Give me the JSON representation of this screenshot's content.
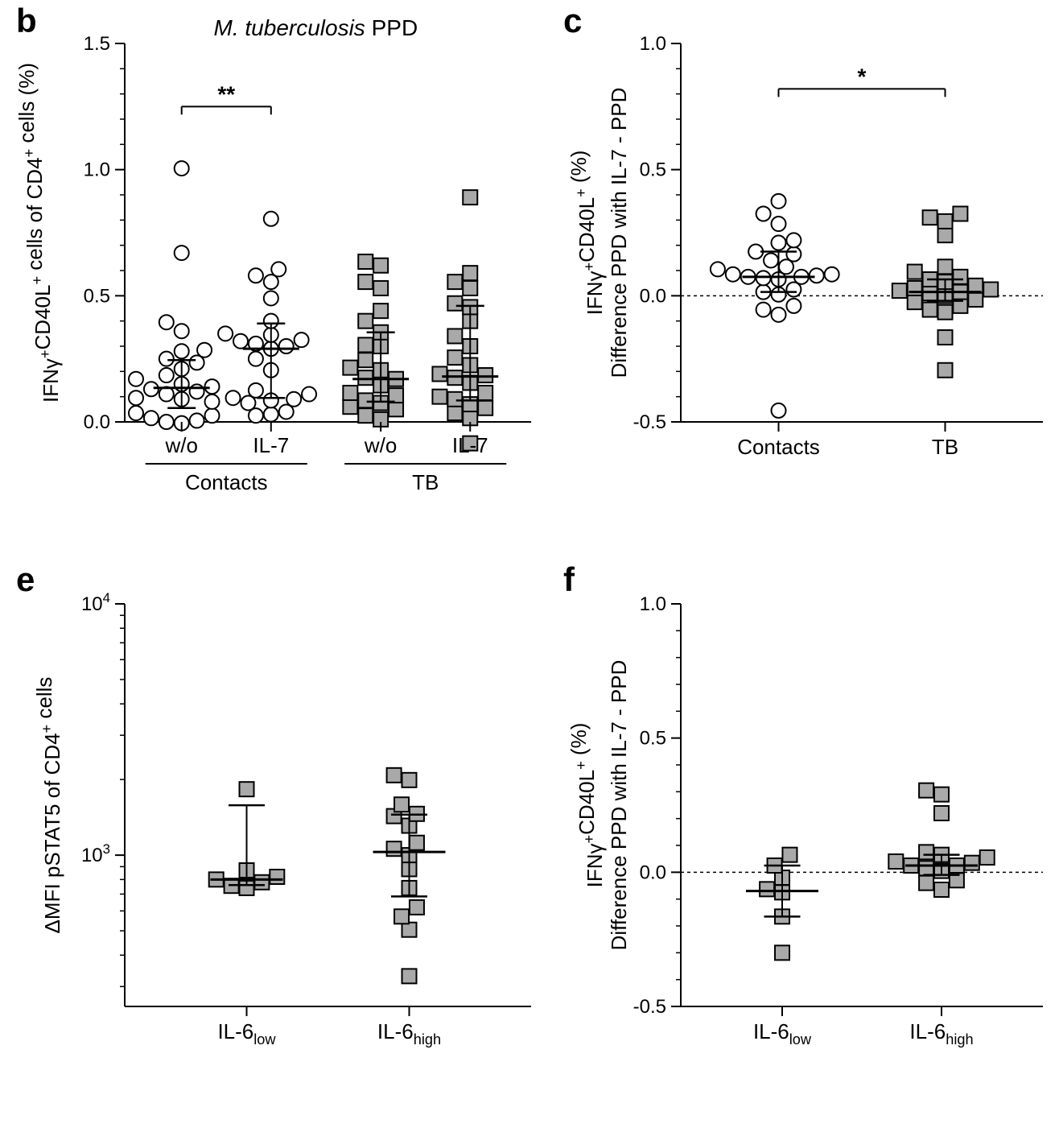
{
  "layout": {
    "figure_w": 1316,
    "figure_h": 1396,
    "font_family": "Arial",
    "panel_label_fontsize": 42,
    "axis_label_fontsize": 26,
    "tick_fontsize": 24,
    "stroke_color": "#000000",
    "marker_stroke": "#000000",
    "circle_fill": "#ffffff",
    "square_fill": "#a9a9a9",
    "marker_stroke_width": 2,
    "marker_size": 18,
    "dash_pattern": "4 4"
  },
  "panels": {
    "b": {
      "label": "b",
      "title": "M. tuberculosis PPD",
      "title_fontsize": 28,
      "title_style": "italic_first_word",
      "ylabel_lines": [
        "IFNγ+CD40L+ cells of CD4+ cells (%)"
      ],
      "ylim": [
        0,
        1.5
      ],
      "ytick_step": 0.5,
      "yminor_step": 0.1,
      "zero_dashed": true,
      "groups": [
        "Contacts",
        "TB"
      ],
      "subgroups": [
        "w/o",
        "IL-7"
      ],
      "sig": {
        "pair": [
          0,
          1
        ],
        "text": "**",
        "y": 1.25
      },
      "medians": [
        0.135,
        0.29,
        0.17,
        0.18
      ],
      "whiskers": [
        [
          0.055,
          0.245
        ],
        [
          0.095,
          0.39
        ],
        [
          0.08,
          0.355
        ],
        [
          0.085,
          0.46
        ]
      ],
      "series_marker": [
        "circle",
        "circle",
        "square",
        "square"
      ],
      "data": [
        [
          -0.005,
          0.0,
          0.005,
          0.015,
          0.025,
          0.035,
          0.09,
          0.11,
          0.12,
          0.13,
          0.14,
          0.08,
          0.095,
          0.15,
          0.185,
          0.17,
          0.21,
          0.235,
          0.25,
          0.28,
          0.285,
          0.36,
          0.395,
          0.67,
          1.005
        ],
        [
          0.03,
          0.025,
          0.04,
          0.075,
          0.085,
          0.09,
          0.095,
          0.11,
          0.125,
          0.205,
          0.25,
          0.29,
          0.3,
          0.31,
          0.32,
          0.325,
          0.345,
          0.35,
          0.4,
          0.49,
          0.555,
          0.58,
          0.605,
          0.805
        ],
        [
          0.01,
          0.025,
          0.05,
          0.06,
          0.075,
          0.085,
          0.105,
          0.115,
          0.145,
          0.175,
          0.17,
          0.205,
          0.215,
          0.245,
          0.3,
          0.305,
          0.355,
          0.4,
          0.44,
          0.53,
          0.555,
          0.62,
          0.635
        ],
        [
          -0.085,
          0.015,
          0.035,
          0.055,
          0.07,
          0.09,
          0.1,
          0.115,
          0.155,
          0.175,
          0.185,
          0.19,
          0.225,
          0.255,
          0.3,
          0.34,
          0.4,
          0.455,
          0.47,
          0.53,
          0.555,
          0.59,
          0.89
        ]
      ]
    },
    "c": {
      "label": "c",
      "ylabel_lines": [
        "IFNγ+CD40L+ (%)",
        "Difference PPD with IL-7 - PPD"
      ],
      "ylim": [
        -0.5,
        1.0
      ],
      "ytick_step": 0.5,
      "yminor_step": 0.1,
      "zero_dashed": true,
      "groups": [
        "Contacts",
        "TB"
      ],
      "sig": {
        "pair": [
          0,
          1
        ],
        "text": "*",
        "y": 0.82
      },
      "medians": [
        0.075,
        0.015
      ],
      "whiskers": [
        [
          0.015,
          0.175
        ],
        [
          -0.02,
          0.065
        ]
      ],
      "series_marker": [
        "circle",
        "square"
      ],
      "data": [
        [
          -0.455,
          -0.075,
          -0.055,
          -0.04,
          0.005,
          0.015,
          0.025,
          0.065,
          0.07,
          0.075,
          0.075,
          0.08,
          0.085,
          0.085,
          0.105,
          0.115,
          0.14,
          0.165,
          0.175,
          0.21,
          0.22,
          0.285,
          0.325,
          0.375
        ],
        [
          -0.295,
          -0.165,
          -0.065,
          -0.055,
          -0.04,
          -0.025,
          -0.015,
          0.0,
          0.01,
          0.015,
          0.02,
          0.025,
          0.03,
          0.04,
          0.055,
          0.065,
          0.075,
          0.095,
          0.115,
          0.24,
          0.295,
          0.31,
          0.325
        ]
      ]
    },
    "e": {
      "label": "e",
      "ylabel_lines": [
        "ΔMFI pSTAT5 of CD4+ cells"
      ],
      "yscale": "log",
      "ylim": [
        250,
        10000
      ],
      "yticks_major": [
        1000,
        10000
      ],
      "ytick_labels": [
        "10^3",
        "10^4"
      ],
      "groups": [
        "IL-6_low",
        "IL-6_high"
      ],
      "medians": [
        800,
        1030
      ],
      "whiskers": [
        [
          760,
          1580
        ],
        [
          685,
          1450
        ]
      ],
      "series_marker": [
        "square",
        "square"
      ],
      "data": [
        [
          740,
          755,
          780,
          800,
          820,
          870,
          1830
        ],
        [
          330,
          505,
          570,
          620,
          740,
          880,
          1000,
          1060,
          1120,
          1310,
          1430,
          1460,
          1590,
          1990,
          2080
        ]
      ]
    },
    "f": {
      "label": "f",
      "ylabel_lines": [
        "IFNγ+CD40L+ (%)",
        "Difference PPD with IL-7 - PPD"
      ],
      "ylim": [
        -0.5,
        1.0
      ],
      "ytick_step": 0.5,
      "yminor_step": 0.1,
      "zero_dashed": true,
      "groups": [
        "IL-6_low",
        "IL-6_high"
      ],
      "medians": [
        -0.07,
        0.025
      ],
      "whiskers": [
        [
          -0.165,
          0.025
        ],
        [
          -0.01,
          0.065
        ]
      ],
      "series_marker": [
        "square",
        "square"
      ],
      "data": [
        [
          -0.3,
          -0.165,
          -0.075,
          -0.063,
          -0.02,
          0.025,
          0.065
        ],
        [
          -0.065,
          -0.04,
          -0.03,
          0.005,
          0.015,
          0.025,
          0.025,
          0.035,
          0.04,
          0.055,
          0.065,
          0.075,
          0.22,
          0.29,
          0.305
        ]
      ]
    }
  }
}
